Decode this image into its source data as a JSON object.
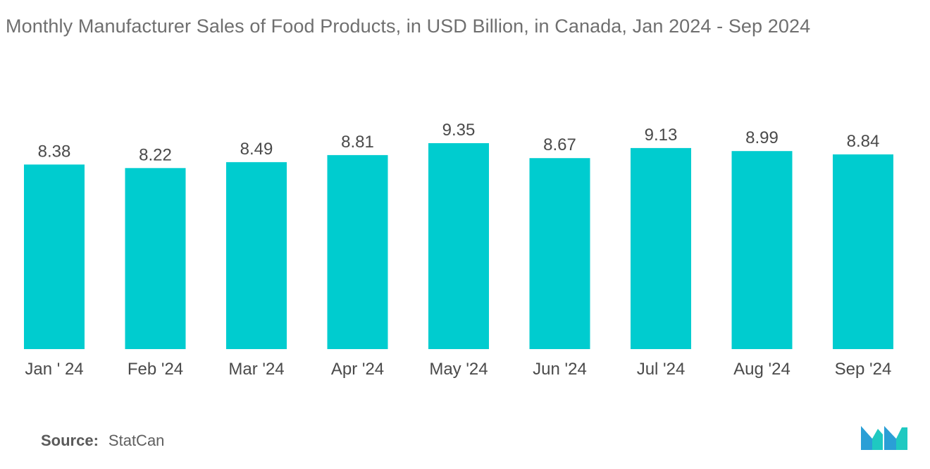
{
  "chart_data": {
    "type": "bar",
    "title": "Monthly Manufacturer Sales of Food Products, in USD Billion, in Canada, Jan 2024 - Sep 2024",
    "categories": [
      "Jan ' 24",
      "Feb '24",
      "Mar '24",
      "Apr '24",
      "May '24",
      "Jun '24",
      "Jul '24",
      "Aug '24",
      "Sep '24"
    ],
    "values": [
      8.38,
      8.22,
      8.49,
      8.81,
      9.35,
      8.67,
      9.13,
      8.99,
      8.84
    ],
    "data_labels": [
      "8.38",
      "8.22",
      "8.49",
      "8.81",
      "9.35",
      "8.67",
      "9.13",
      "8.99",
      "8.84"
    ],
    "xlabel": "",
    "ylabel": "",
    "ylim": [
      0,
      9.35
    ],
    "grid": false,
    "legend": "none",
    "bar_color": "#00cccf"
  },
  "source": {
    "label": "Source:",
    "value": "StatCan"
  },
  "logo": {
    "icon": "mordor-intelligence-logo-icon",
    "colors": [
      "#2a9fd6",
      "#1fc9c1"
    ]
  }
}
